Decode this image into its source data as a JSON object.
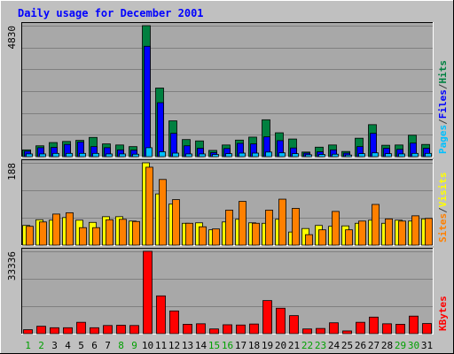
{
  "title": "Daily usage for December 2001",
  "colors": {
    "background": "#C0C0C0",
    "plot": "#A8A8A8",
    "title": "#0000FF",
    "hits": "#008040",
    "files": "#0000FF",
    "pages": "#00C0FF",
    "visits": "#FFFF00",
    "sites": "#FF8000",
    "kbytes": "#FF0000",
    "weekend_label": "#00A000",
    "weekday_label": "#000000"
  },
  "chart_data": [
    {
      "type": "bar",
      "name": "hits-files-pages",
      "ymax_label": "4830",
      "ylim": [
        0,
        4830
      ],
      "legend": [
        "Pages",
        "/",
        "Files",
        "/",
        "Hits"
      ],
      "categories": [
        "1",
        "2",
        "3",
        "4",
        "5",
        "6",
        "7",
        "8",
        "9",
        "10",
        "11",
        "12",
        "13",
        "14",
        "15",
        "16",
        "17",
        "18",
        "19",
        "20",
        "21",
        "22",
        "23",
        "24",
        "25",
        "26",
        "27",
        "28",
        "29",
        "30",
        "31"
      ],
      "series": [
        {
          "name": "Hits",
          "values": [
            250,
            400,
            520,
            560,
            600,
            710,
            470,
            430,
            370,
            4830,
            2530,
            1320,
            630,
            580,
            230,
            430,
            610,
            720,
            1360,
            880,
            650,
            170,
            350,
            430,
            190,
            680,
            1180,
            420,
            430,
            790,
            450
          ]
        },
        {
          "name": "Files",
          "values": [
            200,
            330,
            340,
            450,
            540,
            370,
            330,
            250,
            240,
            4070,
            1990,
            860,
            400,
            310,
            150,
            300,
            490,
            470,
            730,
            590,
            320,
            130,
            180,
            250,
            130,
            370,
            860,
            310,
            270,
            500,
            310
          ]
        },
        {
          "name": "Pages",
          "values": [
            100,
            100,
            120,
            120,
            120,
            120,
            100,
            100,
            90,
            330,
            180,
            130,
            100,
            100,
            80,
            110,
            130,
            130,
            170,
            140,
            110,
            70,
            80,
            90,
            60,
            110,
            140,
            110,
            100,
            120,
            120
          ]
        }
      ]
    },
    {
      "type": "bar",
      "name": "visits-sites",
      "ymax_label": "188",
      "ylim": [
        0,
        188
      ],
      "legend": [
        "Sites",
        "/",
        "Visits"
      ],
      "categories": [
        "1",
        "2",
        "3",
        "4",
        "5",
        "6",
        "7",
        "8",
        "9",
        "10",
        "11",
        "12",
        "13",
        "14",
        "15",
        "16",
        "17",
        "18",
        "19",
        "20",
        "21",
        "22",
        "23",
        "24",
        "25",
        "26",
        "27",
        "28",
        "29",
        "30",
        "31"
      ],
      "series": [
        {
          "name": "Visits",
          "values": [
            45,
            58,
            57,
            63,
            57,
            52,
            65,
            65,
            55,
            188,
            117,
            94,
            50,
            51,
            35,
            53,
            59,
            51,
            50,
            59,
            30,
            38,
            45,
            43,
            44,
            50,
            57,
            50,
            57,
            55,
            60
          ]
        },
        {
          "name": "Sites",
          "values": [
            43,
            53,
            71,
            74,
            40,
            40,
            58,
            59,
            54,
            178,
            150,
            104,
            50,
            42,
            37,
            80,
            100,
            50,
            80,
            105,
            84,
            24,
            35,
            77,
            35,
            55,
            93,
            60,
            55,
            67,
            61
          ]
        }
      ]
    },
    {
      "type": "bar",
      "name": "kbytes",
      "ymax_label": "33336",
      "ylim": [
        0,
        33336
      ],
      "legend": [
        "KBytes"
      ],
      "categories": [
        "1",
        "2",
        "3",
        "4",
        "5",
        "6",
        "7",
        "8",
        "9",
        "10",
        "11",
        "12",
        "13",
        "14",
        "15",
        "16",
        "17",
        "18",
        "19",
        "20",
        "21",
        "22",
        "23",
        "24",
        "25",
        "26",
        "27",
        "28",
        "29",
        "30",
        "31"
      ],
      "series": [
        {
          "name": "KBytes",
          "values": [
            1600,
            3000,
            2400,
            2400,
            4600,
            2400,
            3300,
            3400,
            3300,
            33336,
            15300,
            9200,
            3800,
            4000,
            1900,
            3600,
            3500,
            3900,
            13400,
            10300,
            7300,
            1900,
            2100,
            4400,
            1100,
            4600,
            6700,
            4000,
            3800,
            7100,
            4100
          ]
        }
      ]
    }
  ],
  "weekend_days": [
    "1",
    "2",
    "8",
    "9",
    "15",
    "16",
    "22",
    "23",
    "29",
    "30"
  ]
}
